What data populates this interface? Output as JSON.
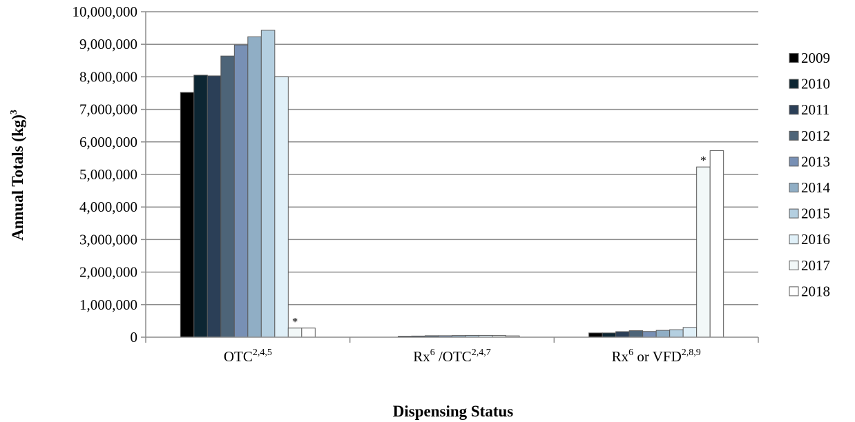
{
  "chart_data": {
    "type": "bar",
    "categories": [
      {
        "base": "OTC",
        "parts": [
          {
            "text": "OTC",
            "sup": false
          },
          {
            "text": "2,4,5",
            "sup": true
          }
        ]
      },
      {
        "base": "Rx/OTC",
        "parts": [
          {
            "text": "Rx",
            "sup": false
          },
          {
            "text": "6",
            "sup": true
          },
          {
            "text": " /OTC",
            "sup": false
          },
          {
            "text": "2,4,7",
            "sup": true
          }
        ]
      },
      {
        "base": "Rx or VFD",
        "parts": [
          {
            "text": "Rx",
            "sup": false
          },
          {
            "text": "6",
            "sup": true
          },
          {
            "text": " or VFD",
            "sup": false
          },
          {
            "text": "2,8,9",
            "sup": true
          }
        ]
      }
    ],
    "series": [
      {
        "name": "2009",
        "color": "#000000",
        "values": [
          7520000,
          0,
          130000
        ]
      },
      {
        "name": "2010",
        "color": "#0d2633",
        "values": [
          8050000,
          30000,
          130000
        ]
      },
      {
        "name": "2011",
        "color": "#2b3f57",
        "values": [
          8030000,
          35000,
          170000
        ]
      },
      {
        "name": "2012",
        "color": "#4d6478",
        "values": [
          8640000,
          45000,
          200000
        ]
      },
      {
        "name": "2013",
        "color": "#7890b5",
        "values": [
          8980000,
          45000,
          175000
        ]
      },
      {
        "name": "2014",
        "color": "#90aec5",
        "values": [
          9230000,
          50000,
          210000
        ]
      },
      {
        "name": "2015",
        "color": "#b4cfe0",
        "values": [
          9430000,
          55000,
          230000
        ]
      },
      {
        "name": "2016",
        "color": "#e0f0f8",
        "values": [
          8000000,
          55000,
          300000
        ]
      },
      {
        "name": "2017",
        "color": "#f2f8f8",
        "values": [
          280000,
          50000,
          5230000
        ]
      },
      {
        "name": "2018",
        "color": "#ffffff",
        "values": [
          280000,
          40000,
          5730000
        ]
      }
    ],
    "annotations": [
      {
        "text": "*",
        "category": 0,
        "series": 8
      },
      {
        "text": "*",
        "category": 2,
        "series": 8
      }
    ],
    "yaxis": {
      "min": 0,
      "max": 10000000,
      "step": 1000000,
      "tick_labels": [
        "0",
        "1,000,000",
        "2,000,000",
        "3,000,000",
        "4,000,000",
        "5,000,000",
        "6,000,000",
        "7,000,000",
        "8,000,000",
        "9,000,000",
        "10,000,000"
      ]
    },
    "ylabel": {
      "text": "Annual Totals (kg)",
      "sup": "3"
    },
    "xlabel": "Dispensing Status",
    "grid": true,
    "legend_position": "right",
    "bar_stroke": "#5a5a5a",
    "gridline_color": "#8c8c8c"
  }
}
